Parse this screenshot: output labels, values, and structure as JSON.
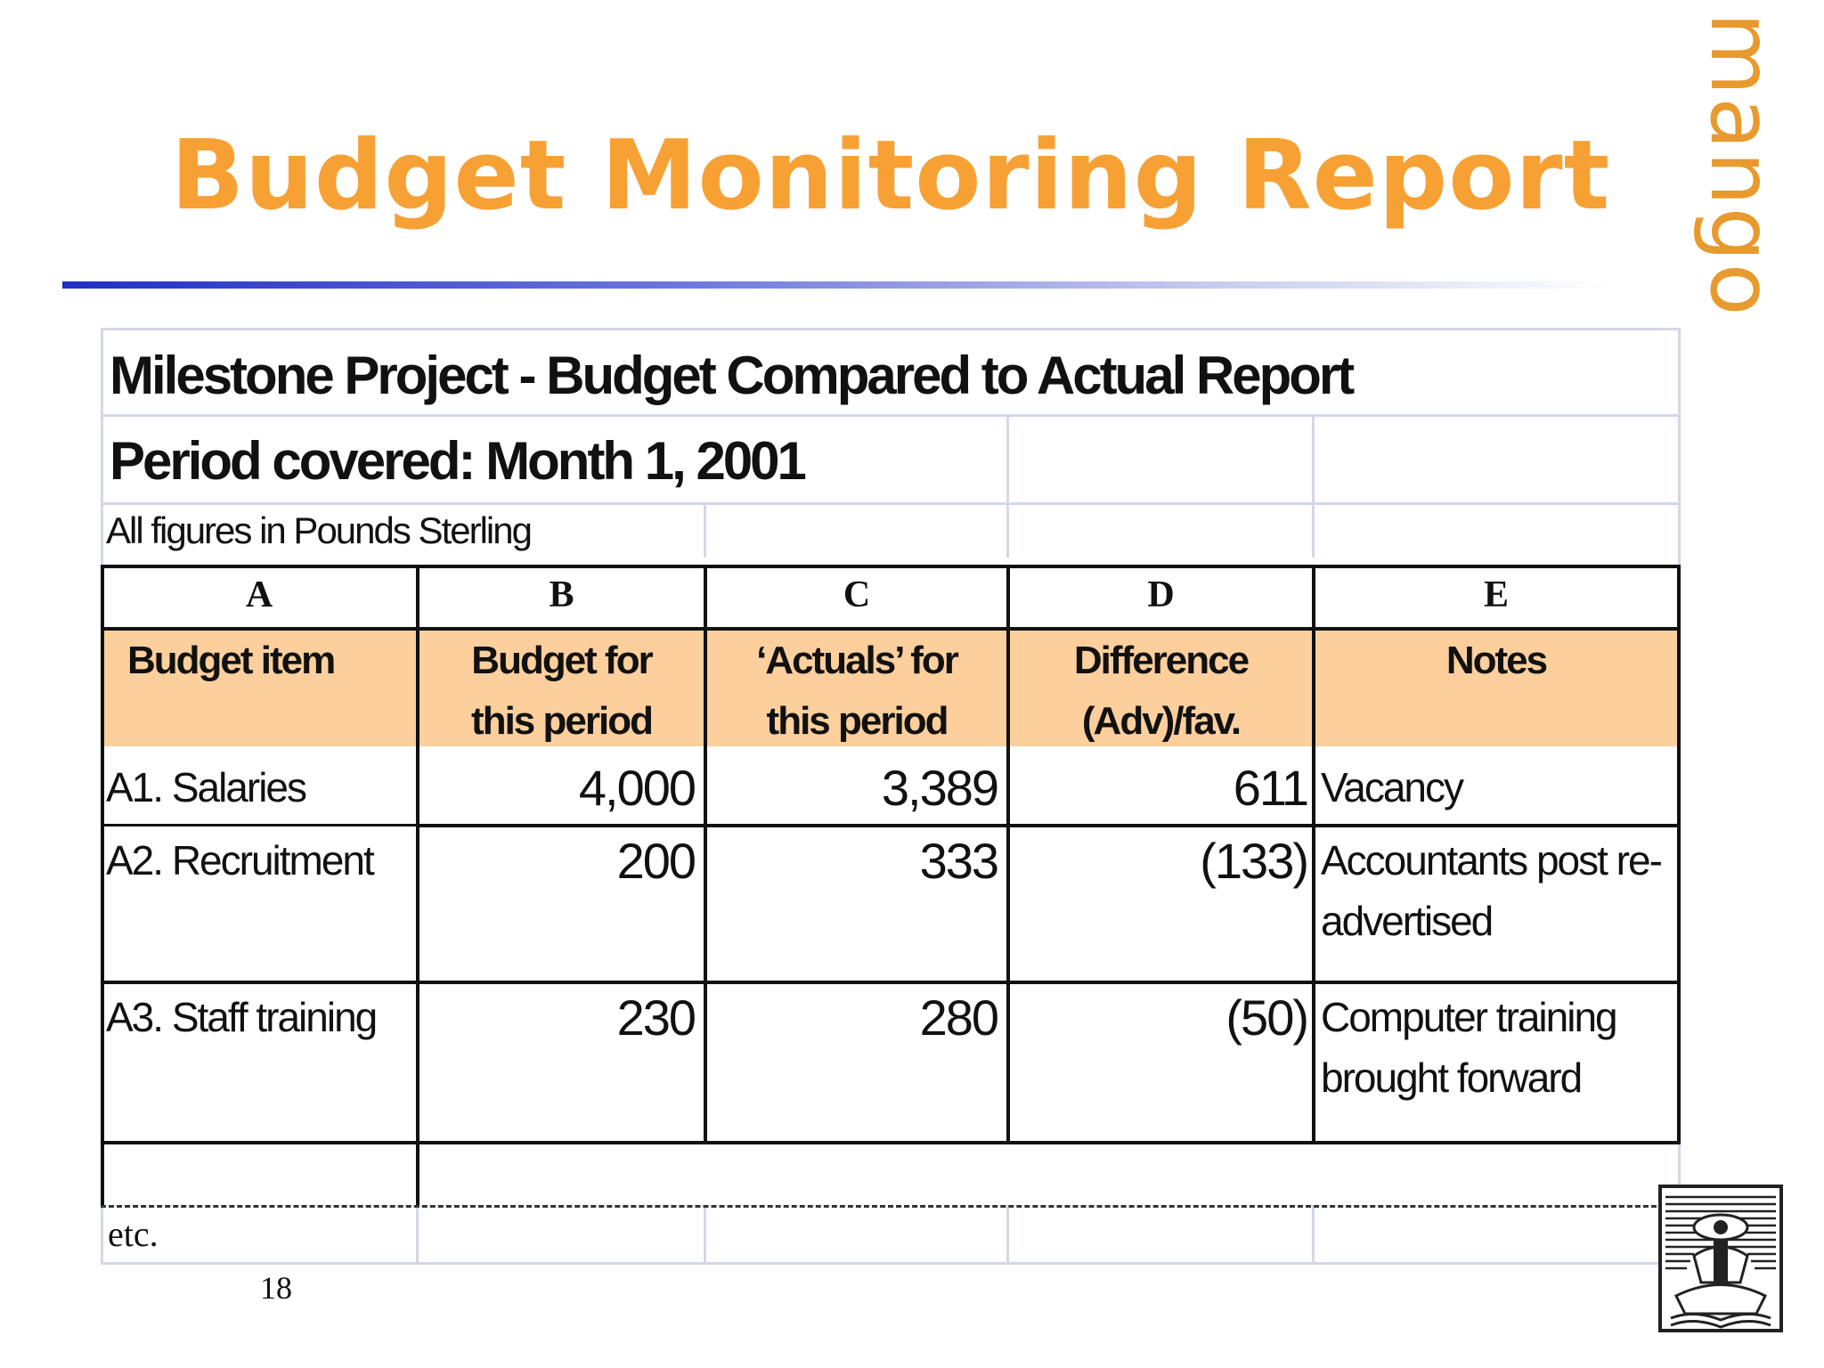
{
  "slide": {
    "title": "Budget Monitoring Report",
    "brand": "mango",
    "page_number": "18"
  },
  "report": {
    "heading": "Milestone Project - Budget Compared to Actual Report",
    "period": "Period covered: Month 1, 2001",
    "units_note": "All figures in Pounds Sterling",
    "column_letters": [
      "A",
      "B",
      "C",
      "D",
      "E"
    ],
    "headers": {
      "a": [
        "Budget item"
      ],
      "b": [
        "Budget for",
        "this period"
      ],
      "c": [
        "‘Actuals’ for",
        "this period"
      ],
      "d": [
        "Difference",
        "(Adv)/fav."
      ],
      "e": [
        "Notes"
      ]
    },
    "rows": [
      {
        "item": "A1. Salaries",
        "budget": "4,000",
        "actual": "3,389",
        "difference": "611",
        "notes": [
          "Vacancy"
        ]
      },
      {
        "item": "A2. Recruitment",
        "budget": "200",
        "actual": "333",
        "difference": "(133)",
        "notes": [
          "Accountants post re-",
          "advertised"
        ]
      },
      {
        "item": "A3. Staff training",
        "budget": "230",
        "actual": "280",
        "difference": "(50)",
        "notes": [
          "Computer training",
          "brought forward"
        ]
      }
    ],
    "etc_label": "etc."
  },
  "colors": {
    "title": "#f7a134",
    "header_fill": "#fccf9c",
    "rule_start": "#1f2fc4"
  }
}
